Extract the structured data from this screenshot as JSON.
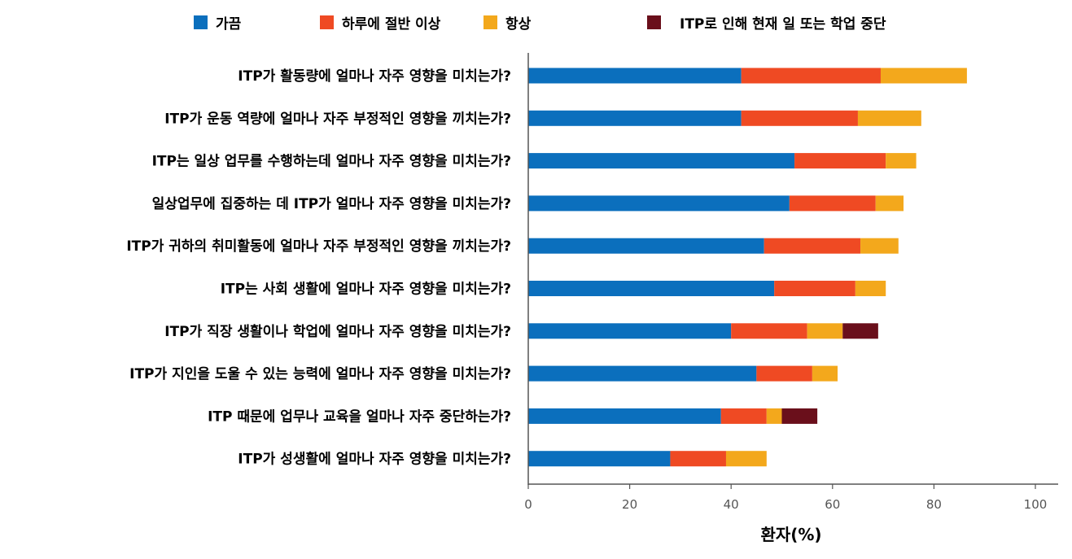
{
  "chart_data": {
    "type": "bar",
    "orientation": "horizontal",
    "stacked": true,
    "title": "",
    "xlabel": "환자(%)",
    "ylabel": "",
    "xlim": [
      0,
      100
    ],
    "xticks": [
      0,
      20,
      40,
      60,
      80,
      100
    ],
    "legend_position": "top",
    "categories": [
      "ITP가 활동량에 얼마나 자주 영향을 미치는가?",
      "ITP가 운동 역량에 얼마나 자주 부정적인 영향을 끼치는가?",
      "ITP는 일상 업무를 수행하는데 얼마나 자주 영향을 미치는가?",
      "일상업무에 집중하는 데 ITP가 얼마나 자주 영향을 미치는가?",
      "ITP가 귀하의 취미활동에 얼마나 자주 부정적인 영향을 끼치는가?",
      "ITP는 사회 생활에 얼마나 자주 영향을 미치는가?",
      "ITP가 직장 생활이나 학업에 얼마나 자주 영향을 미치는가?",
      "ITP가 지인을 도울 수 있는 능력에 얼마나 자주 영향을 미치는가?",
      "ITP 때문에 업무나 교육을 얼마나 자주 중단하는가?",
      "ITP가 성생활에 얼마나 자주 영향을 미치는가?"
    ],
    "series": [
      {
        "name": "가끔",
        "color": "#0b6fbd",
        "values": [
          42,
          42,
          52.5,
          51.5,
          46.5,
          48.5,
          40,
          45,
          38,
          28
        ]
      },
      {
        "name": "하루에 절반 이상",
        "color": "#ef4a23",
        "values": [
          27.5,
          23,
          18,
          17,
          19,
          16,
          15,
          11,
          9,
          11
        ]
      },
      {
        "name": "항상",
        "color": "#f3a81c",
        "values": [
          17,
          12.5,
          6,
          5.5,
          7.5,
          6,
          7,
          5,
          3,
          8
        ]
      },
      {
        "name": "ITP로 인해 현재 일 또는 학업 중단",
        "color": "#6a0f1b",
        "values": [
          0,
          0,
          0,
          0,
          0,
          0,
          7,
          0,
          7,
          0
        ]
      }
    ]
  }
}
